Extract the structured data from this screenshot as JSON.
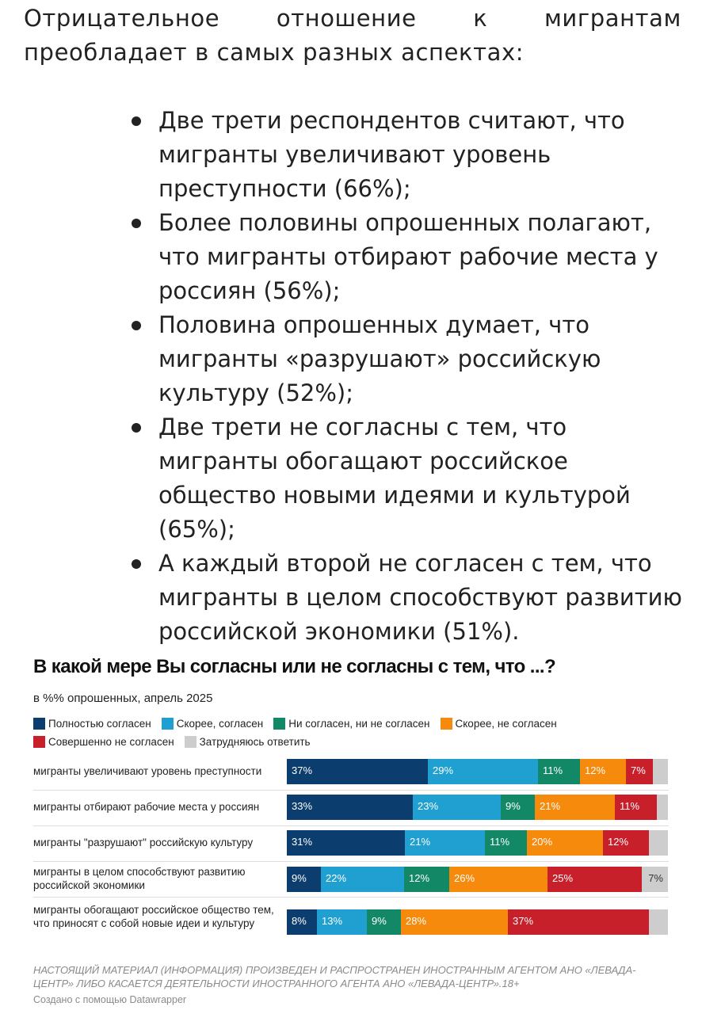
{
  "article": {
    "intro": "Отрицательное отношение к мигрантам преобладает в самых разных аспектах:",
    "bullets": [
      "Две трети респондентов считают, что мигранты увеличивают уровень преступности (66%);",
      "Более половины опрошенных полагают, что мигранты отбирают рабочие места у россиян (56%);",
      "Половина опрошенных думает, что мигранты «разрушают» российскую культуру (52%);",
      "Две трети не согласны с тем, что мигранты обогащают российское общество новыми идеями и культурой (65%);",
      "А каждый второй не согласен с тем, что мигранты в целом способствуют развитию российской экономики (51%)."
    ]
  },
  "chart_data": {
    "type": "bar",
    "orientation": "horizontal",
    "stacked": true,
    "title": "В какой мере Вы согласны или не согласны с тем, что ...?",
    "subtitle": "в %% опрошенных, апрель 2025",
    "legend_position": "top",
    "series": [
      {
        "name": "Полностью согласен",
        "color": "#0b3d6e",
        "label_color": "#ffffff",
        "values": [
          37,
          33,
          31,
          9,
          8
        ]
      },
      {
        "name": "Скорее, согласен",
        "color": "#1fa0d0",
        "label_color": "#ffffff",
        "values": [
          29,
          23,
          21,
          22,
          13
        ]
      },
      {
        "name": "Ни согласен, ни не согласен",
        "color": "#138867",
        "label_color": "#ffffff",
        "values": [
          11,
          9,
          11,
          12,
          9
        ]
      },
      {
        "name": "Скорее, не согласен",
        "color": "#f68a0c",
        "label_color": "#ffffff",
        "values": [
          12,
          21,
          20,
          26,
          28
        ]
      },
      {
        "name": "Совершенно не согласен",
        "color": "#c8202a",
        "label_color": "#ffffff",
        "values": [
          7,
          11,
          12,
          25,
          37
        ]
      },
      {
        "name": "Затрудняюсь ответить",
        "color": "#cdcdcd",
        "label_color": "#333333",
        "values": [
          4,
          3,
          5,
          7,
          5
        ]
      }
    ],
    "shown_labels": [
      [
        "37%",
        "29%",
        "11%",
        "12%",
        "7%",
        ""
      ],
      [
        "33%",
        "23%",
        "9%",
        "21%",
        "11%",
        ""
      ],
      [
        "31%",
        "21%",
        "11%",
        "20%",
        "12%",
        ""
      ],
      [
        "9%",
        "22%",
        "12%",
        "26%",
        "25%",
        "7%"
      ],
      [
        "8%",
        "13%",
        "9%",
        "28%",
        "37%",
        ""
      ]
    ],
    "categories": [
      "мигранты увеличивают уровень преступности",
      "мигранты отбирают рабочие места у россиян",
      "мигранты \"разрушают\" российскую культуру",
      "мигранты в целом способствуют развитию российской экономики",
      "мигранты обогащают российское общество тем, что приносят с собой новые идеи и культуру"
    ],
    "xlim": [
      0,
      100
    ],
    "xlabel": "",
    "ylabel": ""
  },
  "footnote": "НАСТОЯЩИЙ МАТЕРИАЛ (ИНФОРМАЦИЯ) ПРОИЗВЕДЕН И РАСПРОСТРАНЕН ИНОСТРАННЫМ АГЕНТОМ АНО «ЛЕВАДА-ЦЕНТР» ЛИБО КАСАЕТСЯ ДЕЯТЕЛЬНОСТИ ИНОСТРАННОГО АГЕНТА АНО «ЛЕВАДА-ЦЕНТР».18+",
  "credit": "Создано с помощью Datawrapper"
}
